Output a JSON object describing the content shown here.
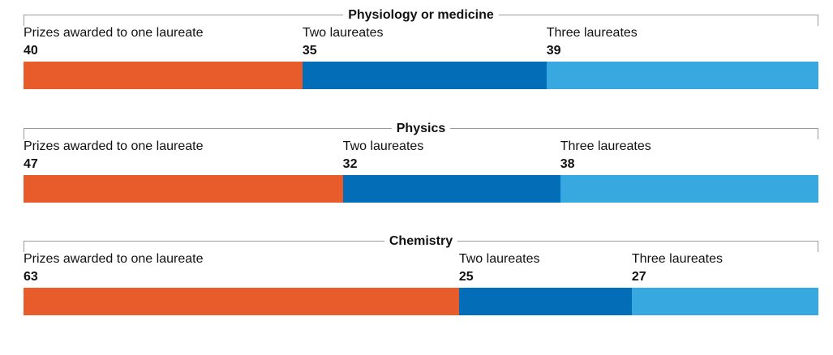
{
  "chart_data": [
    {
      "type": "bar",
      "stacked": true,
      "orientation": "horizontal",
      "title": "Physiology or medicine",
      "categories": [
        "Prizes awarded to one laureate",
        "Two laureates",
        "Three laureates"
      ],
      "values": [
        40,
        35,
        39
      ]
    },
    {
      "type": "bar",
      "stacked": true,
      "orientation": "horizontal",
      "title": "Physics",
      "categories": [
        "Prizes awarded to one laureate",
        "Two laureates",
        "Three laureates"
      ],
      "values": [
        47,
        32,
        38
      ]
    },
    {
      "type": "bar",
      "stacked": true,
      "orientation": "horizontal",
      "title": "Chemistry",
      "categories": [
        "Prizes awarded to one laureate",
        "Two laureates",
        "Three laureates"
      ],
      "values": [
        63,
        25,
        27
      ]
    }
  ],
  "colors": [
    "#e85b2b",
    "#036eb7",
    "#38a9e0"
  ]
}
